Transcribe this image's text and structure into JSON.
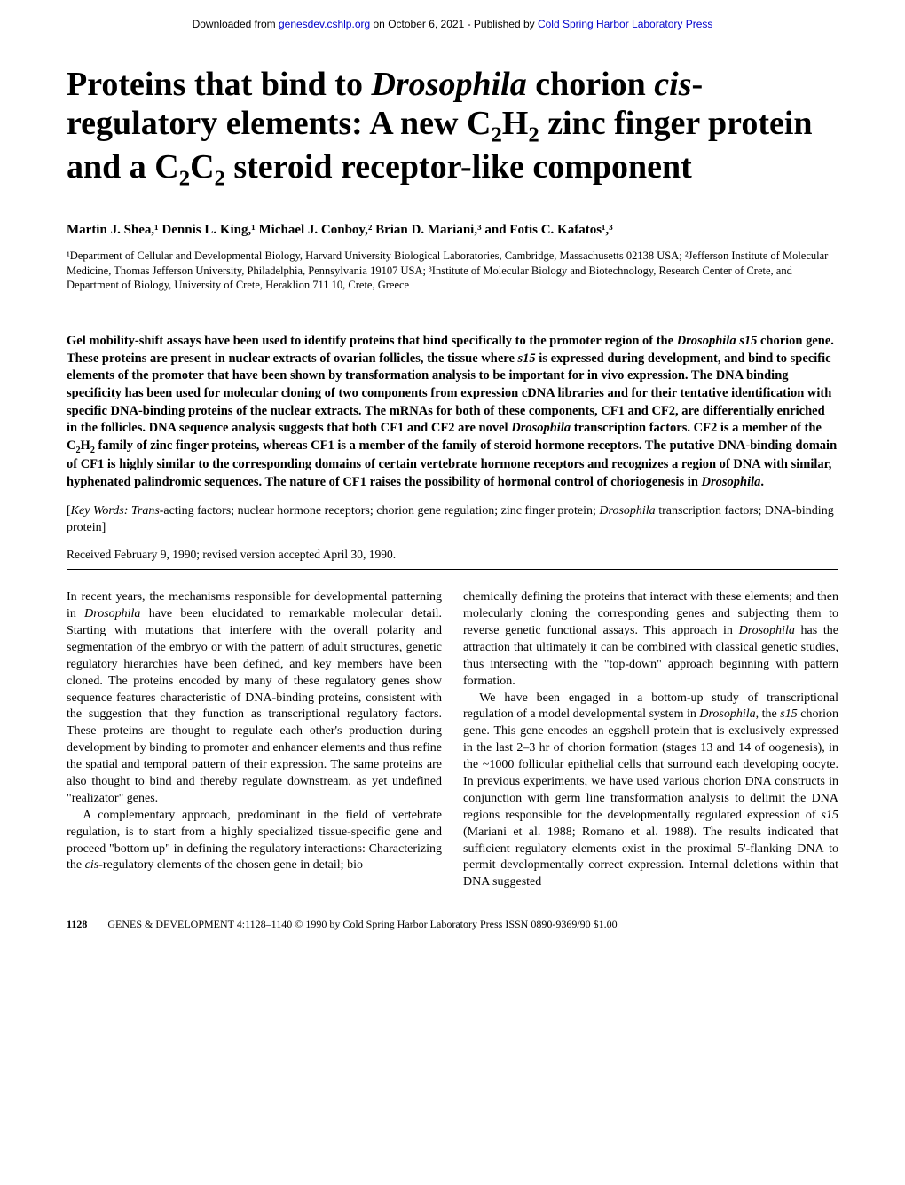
{
  "banner": {
    "prefix": "Downloaded from ",
    "link1_text": "genesdev.cshlp.org",
    "mid": " on October 6, 2021 - Published by ",
    "link2_text": "Cold Spring Harbor Laboratory Press"
  },
  "title": {
    "line1_a": "Proteins that bind to ",
    "line1_b_italic": "Drosophila",
    "line1_c": " chorion ",
    "line2_a_italic": "cis",
    "line2_b": "-regulatory elements: A new C",
    "line2_sub1": "2",
    "line2_c": "H",
    "line2_sub2": "2",
    "line2_d": " zinc finger protein and a C",
    "line2_sub3": "2",
    "line2_e": "C",
    "line2_sub4": "2",
    "line2_f": " steroid receptor-like component"
  },
  "authors": "Martin J. Shea,¹ Dennis L. King,¹ Michael J. Conboy,² Brian D. Mariani,³ and Fotis C. Kafatos¹,³",
  "affiliations": "¹Department of Cellular and Developmental Biology, Harvard University Biological Laboratories, Cambridge, Massachusetts 02138 USA; ²Jefferson Institute of Molecular Medicine, Thomas Jefferson University, Philadelphia, Pennsylvania 19107 USA; ³Institute of Molecular Biology and Biotechnology, Research Center of Crete, and Department of Biology, University of Crete, Heraklion 711 10, Crete, Greece",
  "abstract_html": "Gel mobility-shift assays have been used to identify proteins that bind specifically to the promoter region of the <span class=\"italic\">Drosophila s15</span> chorion gene. These proteins are present in nuclear extracts of ovarian follicles, the tissue where <span class=\"italic\">s15</span> is expressed during development, and bind to specific elements of the promoter that have been shown by transformation analysis to be important for in vivo expression. The DNA binding specificity has been used for molecular cloning of two components from expression cDNA libraries and for their tentative identification with specific DNA-binding proteins of the nuclear extracts. The mRNAs for both of these components, CF1 and CF2, are differentially enriched in the follicles. DNA sequence analysis suggests that both CF1 and CF2 are novel <span class=\"italic\">Drosophila</span> transcription factors. CF2 is a member of the C<sub>2</sub>H<sub>2</sub> family of zinc finger proteins, whereas CF1 is a member of the family of steroid hormone receptors. The putative DNA-binding domain of CF1 is highly similar to the corresponding domains of certain vertebrate hormone receptors and recognizes a region of DNA with similar, hyphenated palindromic sequences. The nature of CF1 raises the possibility of hormonal control of choriogenesis in <span class=\"italic\">Drosophila</span>.",
  "keywords_html": "[<span class=\"italic\">Key Words: Trans</span>-acting factors; nuclear hormone receptors; chorion gene regulation; zinc finger protein; <span class=\"italic\">Drosophila</span> transcription factors; DNA-binding protein]",
  "received": "Received February 9, 1990; revised version accepted April 30, 1990.",
  "body": {
    "p1_html": "In recent years, the mechanisms responsible for developmental patterning in <span class=\"italic\">Drosophila</span> have been elucidated to remarkable molecular detail. Starting with mutations that interfere with the overall polarity and segmentation of the embryo or with the pattern of adult structures, genetic regulatory hierarchies have been defined, and key members have been cloned. The proteins encoded by many of these regulatory genes show sequence features characteristic of DNA-binding proteins, consistent with the suggestion that they function as transcriptional regulatory factors. These proteins are thought to regulate each other's production during development by binding to promoter and enhancer elements and thus refine the spatial and temporal pattern of their expression. The same proteins are also thought to bind and thereby regulate downstream, as yet undefined \"realizator\" genes.",
    "p2_html": "A complementary approach, predominant in the field of vertebrate regulation, is to start from a highly specialized tissue-specific gene and proceed \"bottom up\" in defining the regulatory interactions: Characterizing the <span class=\"italic\">cis</span>-regulatory elements of the chosen gene in detail; bio",
    "p3_html": "chemically defining the proteins that interact with these elements; and then molecularly cloning the corresponding genes and subjecting them to reverse genetic functional assays. This approach in <span class=\"italic\">Drosophila</span> has the attraction that ultimately it can be combined with classical genetic studies, thus intersecting with the \"top-down\" approach beginning with pattern formation.",
    "p4_html": "We have been engaged in a bottom-up study of transcriptional regulation of a model developmental system in <span class=\"italic\">Drosophila</span>, the <span class=\"italic\">s15</span> chorion gene. This gene encodes an eggshell protein that is exclusively expressed in the last 2–3 hr of chorion formation (stages 13 and 14 of oogenesis), in the ~1000 follicular epithelial cells that surround each developing oocyte. In previous experiments, we have used various chorion DNA constructs in conjunction with germ line transformation analysis to delimit the DNA regions responsible for the developmentally regulated expression of <span class=\"italic\">s15</span> (Mariani et al. 1988; Romano et al. 1988). The results indicated that sufficient regulatory elements exist in the proximal 5'-flanking DNA to permit developmentally correct expression. Internal deletions within that DNA suggested"
  },
  "footer": {
    "page_num": "1128",
    "citation": "GENES & DEVELOPMENT 4:1128–1140 © 1990 by Cold Spring Harbor Laboratory Press ISSN 0890-9369/90 $1.00"
  }
}
